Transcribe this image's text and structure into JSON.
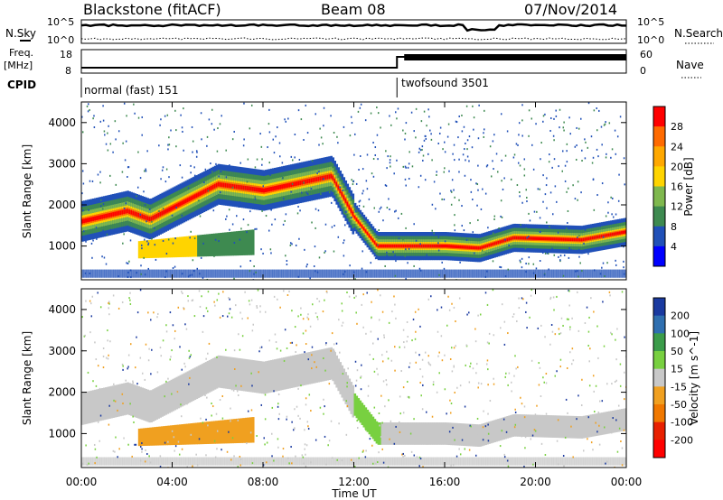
{
  "header": {
    "title": "Blackstone (fitACF)",
    "beam": "Beam 08",
    "date": "07/Nov/2014"
  },
  "noise_panel": {
    "left_label": "N.Sky",
    "right_label": "N.Search",
    "left_ticks": [
      "10^5",
      "10^0"
    ],
    "right_ticks": [
      "10^5",
      "10^0"
    ]
  },
  "freq_panel": {
    "left_label": "Freq.",
    "left_unit": "[MHz]",
    "left_ticks": [
      "18",
      "8"
    ],
    "right_label": "Nave",
    "right_ticks": [
      "60",
      "0"
    ]
  },
  "cpid": {
    "label": "CPID",
    "segments": [
      {
        "name": "normal (fast) 151",
        "start_hour": 0
      },
      {
        "name": "twofsound 3501",
        "start_hour": 13.9
      }
    ]
  },
  "power_panel": {
    "ylabel": "Slant Range [km]",
    "cbar_label": "Power [dB]",
    "cbar_ticks": [
      "28",
      "24",
      "20",
      "16",
      "12",
      "8",
      "4"
    ],
    "cbar_colors": [
      "#ff0000",
      "#ff6a00",
      "#ffa800",
      "#ffd400",
      "#7fb84e",
      "#3e8a50",
      "#2050b8",
      "#0000ff"
    ]
  },
  "velocity_panel": {
    "ylabel": "Slant Range [km]",
    "cbar_label": "Velocity [m s^-1]",
    "cbar_ticks": [
      "200",
      "100",
      "50",
      "15",
      "-15",
      "-50",
      "-100",
      "-200"
    ],
    "cbar_colors": [
      "#1a3aa0",
      "#2f6fb0",
      "#3b9c4a",
      "#78d040",
      "#c8c8c8",
      "#f0a020",
      "#f07800",
      "#e82000",
      "#ff0000"
    ]
  },
  "x_axis": {
    "label": "Time UT",
    "ticks": [
      "00:00",
      "04:00",
      "08:00",
      "12:00",
      "16:00",
      "20:00",
      "00:00"
    ]
  },
  "chart_data": {
    "type": "heatmap",
    "x_range_hours": [
      0,
      24
    ],
    "y_range_km": [
      180,
      4500
    ],
    "y_ticks": [
      1000,
      2000,
      3000,
      4000
    ],
    "power_band_center_km": [
      [
        0,
        1600
      ],
      [
        2,
        1850
      ],
      [
        3,
        1650
      ],
      [
        6,
        2500
      ],
      [
        8,
        2350
      ],
      [
        11,
        2700
      ],
      [
        12,
        1700
      ],
      [
        13,
        1000
      ],
      [
        16,
        1000
      ],
      [
        17.5,
        950
      ],
      [
        19,
        1200
      ],
      [
        22,
        1150
      ],
      [
        24,
        1350
      ]
    ],
    "lower_echo_region": {
      "hours": [
        2.5,
        7.5
      ],
      "range_km": [
        700,
        1400
      ]
    },
    "nave_step": {
      "before_hour": 13.9,
      "before_value": 10,
      "after_value": 50
    }
  }
}
